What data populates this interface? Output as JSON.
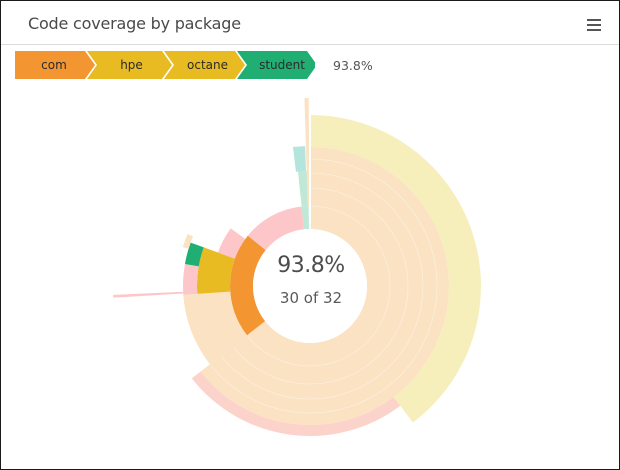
{
  "widget": {
    "title": "Code coverage by package",
    "menu_icon": "hamburger-menu-icon"
  },
  "breadcrumb": {
    "items": [
      {
        "label": "com",
        "color": "#f39530"
      },
      {
        "label": "hpe",
        "color": "#e8bb22"
      },
      {
        "label": "octane",
        "color": "#e8bb22"
      },
      {
        "label": "student",
        "color": "#20ae73"
      }
    ],
    "value": "93.8%"
  },
  "center": {
    "percent": "93.8%",
    "count": "30 of 32"
  },
  "colors": {
    "orange": "#f39530",
    "yellow": "#e8bb22",
    "green": "#20ae73",
    "peach": "#fae2c3",
    "pale_yellow": "#f6efbc",
    "pink": "#fdc6c9",
    "salmon": "#fcd3cb",
    "mint": "#bfe8d6",
    "teal": "#b3e5dc"
  },
  "chart_data": {
    "type": "sunburst",
    "title": "Code coverage by package",
    "center_value": "93.8%",
    "center_detail": "30 of 32",
    "selected_path": [
      "com",
      "hpe",
      "octane",
      "student"
    ],
    "note": "Arc angles are estimated in degrees clockwise from 12 o'clock; radii in px from center (310,285).",
    "segments": [
      {
        "ring": 1,
        "start": 0,
        "end": 232,
        "r0": 57,
        "r1": 139,
        "color": "#fae2c3"
      },
      {
        "ring": 1,
        "start": 232,
        "end": 309,
        "r0": 57,
        "r1": 80,
        "color": "#f39530",
        "label": "com"
      },
      {
        "ring": 1,
        "start": 309,
        "end": 354,
        "r0": 57,
        "r1": 80,
        "color": "#fdc6c9"
      },
      {
        "ring": 1,
        "start": 354,
        "end": 359,
        "r0": 57,
        "r1": 80,
        "color": "#bfe8d6"
      },
      {
        "ring": 2,
        "start": 232,
        "end": 266,
        "r0": 80,
        "r1": 127,
        "color": "#fae2c3"
      },
      {
        "ring": 2,
        "start": 266,
        "end": 290,
        "r0": 80,
        "r1": 113,
        "color": "#e8bb22",
        "label": "hpe/octane"
      },
      {
        "ring": 2,
        "start": 290,
        "end": 306,
        "r0": 80,
        "r1": 98,
        "color": "#fdc6c9"
      },
      {
        "ring": 3,
        "start": 266,
        "end": 280,
        "r0": 113,
        "r1": 127,
        "color": "#fdc6c9"
      },
      {
        "ring": 3,
        "start": 280,
        "end": 290,
        "r0": 113,
        "r1": 127,
        "color": "#20ae73",
        "label": "student"
      },
      {
        "ring": 3,
        "start": 287,
        "end": 293,
        "r0": 127,
        "r1": 133,
        "color": "#fae2c3"
      },
      {
        "ring": 2,
        "start": 354,
        "end": 359,
        "r0": 80,
        "r1": 115,
        "color": "#bfe8d6"
      },
      {
        "ring": 3,
        "start": 353,
        "end": 358,
        "r0": 115,
        "r1": 140,
        "color": "#b3e5dc"
      },
      {
        "ring": 4,
        "start": 0,
        "end": 143,
        "r0": 139,
        "r1": 171,
        "color": "#f6efbc"
      },
      {
        "ring": 4,
        "start": 143,
        "end": 232,
        "r0": 139,
        "r1": 150,
        "color": "#fcd3cb"
      },
      {
        "ring": 5,
        "start": 358.3,
        "end": 359.6,
        "r0": 80,
        "r1": 188,
        "color": "#fae2c3"
      },
      {
        "ring": 5,
        "start": 266.6,
        "end": 267.4,
        "r0": 127,
        "r1": 197,
        "color": "#fdc6c9"
      }
    ]
  }
}
